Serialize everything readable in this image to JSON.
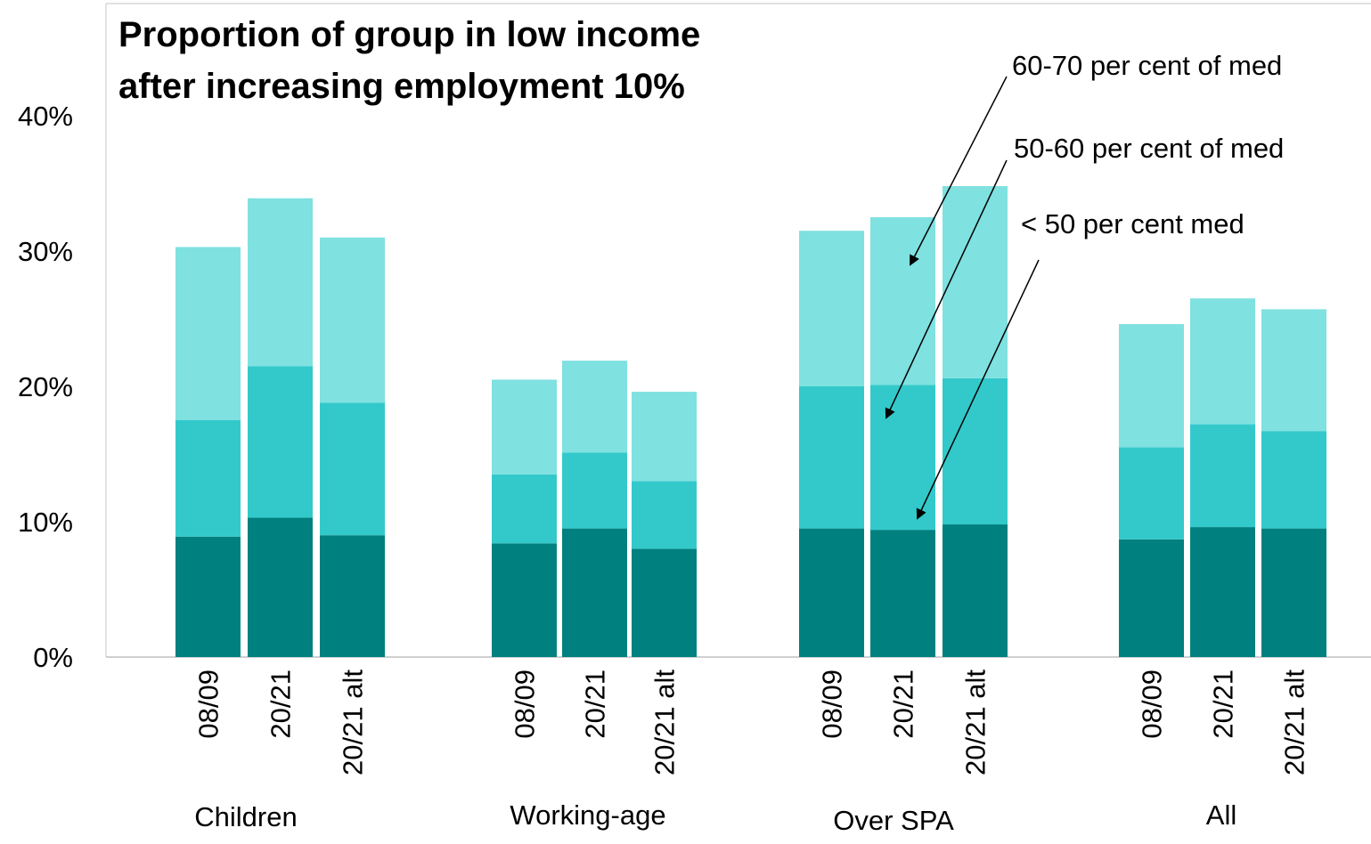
{
  "chart_data": {
    "type": "bar",
    "stacked": true,
    "title_lines": [
      "Proportion of group in low income",
      "after increasing employment 10%"
    ],
    "groups": [
      "Children",
      "Working-age",
      "Over SPA",
      "All"
    ],
    "categories": [
      "08/09",
      "20/21",
      "20/21 alt"
    ],
    "yticks": [
      "0%",
      "10%",
      "20%",
      "30%",
      "40%"
    ],
    "ylim": [
      0,
      40
    ],
    "legend_annotations": [
      "60-70 per cent of med",
      "50-60 per cent of med",
      "< 50 per cent med"
    ],
    "series": [
      {
        "name": "< 50 per cent med",
        "color": "#00807f",
        "values": [
          [
            8.9,
            10.3,
            9.0
          ],
          [
            8.4,
            9.5,
            8.0
          ],
          [
            9.5,
            9.4,
            9.8
          ],
          [
            8.7,
            9.6,
            9.5
          ]
        ]
      },
      {
        "name": "50-60 per cent of med",
        "color": "#33c9cb",
        "values": [
          [
            8.6,
            11.2,
            9.8
          ],
          [
            5.1,
            5.6,
            5.0
          ],
          [
            10.5,
            10.7,
            10.8
          ],
          [
            6.8,
            7.6,
            7.2
          ]
        ]
      },
      {
        "name": "60-70 per cent of med",
        "color": "#7fe1e0",
        "values": [
          [
            12.8,
            12.4,
            12.2
          ],
          [
            7.0,
            6.8,
            6.6
          ],
          [
            11.5,
            12.4,
            14.2
          ],
          [
            9.1,
            9.3,
            9.0
          ]
        ]
      }
    ]
  }
}
